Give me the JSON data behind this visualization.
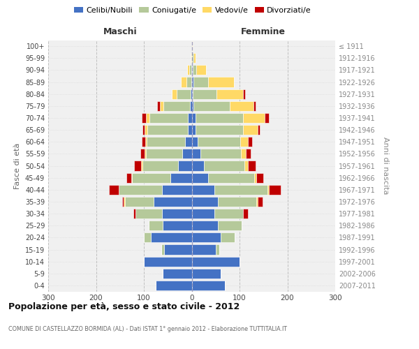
{
  "age_groups": [
    "0-4",
    "5-9",
    "10-14",
    "15-19",
    "20-24",
    "25-29",
    "30-34",
    "35-39",
    "40-44",
    "45-49",
    "50-54",
    "55-59",
    "60-64",
    "65-69",
    "70-74",
    "75-79",
    "80-84",
    "85-89",
    "90-94",
    "95-99",
    "100+"
  ],
  "birth_years": [
    "2007-2011",
    "2002-2006",
    "1997-2001",
    "1992-1996",
    "1987-1991",
    "1982-1986",
    "1977-1981",
    "1972-1976",
    "1967-1971",
    "1962-1966",
    "1957-1961",
    "1952-1956",
    "1947-1951",
    "1942-1946",
    "1937-1941",
    "1932-1936",
    "1927-1931",
    "1922-1926",
    "1917-1921",
    "1912-1916",
    "≤ 1911"
  ],
  "colors": {
    "celibi": "#4472c4",
    "coniugati": "#b5c99a",
    "vedovi": "#ffd966",
    "divorziati": "#c00000"
  },
  "maschi": {
    "celibi": [
      75,
      60,
      100,
      58,
      85,
      60,
      62,
      80,
      62,
      45,
      28,
      20,
      14,
      8,
      8,
      4,
      2,
      1,
      1,
      0,
      0
    ],
    "coniugati": [
      0,
      0,
      0,
      5,
      15,
      30,
      55,
      60,
      90,
      80,
      75,
      75,
      80,
      85,
      80,
      55,
      30,
      10,
      4,
      1,
      0
    ],
    "vedovi": [
      0,
      0,
      0,
      0,
      0,
      0,
      0,
      2,
      1,
      2,
      3,
      3,
      3,
      5,
      8,
      8,
      10,
      12,
      5,
      1,
      0
    ],
    "divorziati": [
      0,
      0,
      0,
      0,
      0,
      0,
      5,
      3,
      20,
      10,
      15,
      10,
      8,
      5,
      8,
      5,
      0,
      0,
      0,
      0,
      0
    ]
  },
  "femmine": {
    "celibi": [
      70,
      60,
      100,
      50,
      60,
      55,
      48,
      55,
      48,
      35,
      25,
      18,
      12,
      8,
      8,
      4,
      2,
      4,
      2,
      1,
      1
    ],
    "coniugati": [
      0,
      0,
      0,
      8,
      30,
      50,
      60,
      80,
      110,
      95,
      85,
      85,
      90,
      100,
      100,
      75,
      50,
      30,
      8,
      2,
      0
    ],
    "vedovi": [
      0,
      0,
      0,
      0,
      0,
      0,
      0,
      3,
      3,
      5,
      8,
      10,
      15,
      30,
      45,
      50,
      55,
      55,
      20,
      5,
      1
    ],
    "divorziati": [
      0,
      0,
      0,
      0,
      0,
      0,
      10,
      10,
      25,
      15,
      15,
      10,
      10,
      5,
      8,
      5,
      5,
      0,
      0,
      0,
      0
    ]
  },
  "xlim": 300,
  "title": "Popolazione per età, sesso e stato civile - 2012",
  "subtitle": "COMUNE DI CASTELLAZZO BORMIDA (AL) - Dati ISTAT 1° gennaio 2012 - Elaborazione TUTTITALIA.IT",
  "ylabel": "Fasce di età",
  "ylabel2": "Anni di nascita",
  "xlabel_maschi": "Maschi",
  "xlabel_femmine": "Femmine",
  "bg_color": "#f0f0f0",
  "grid_color": "#cccccc"
}
